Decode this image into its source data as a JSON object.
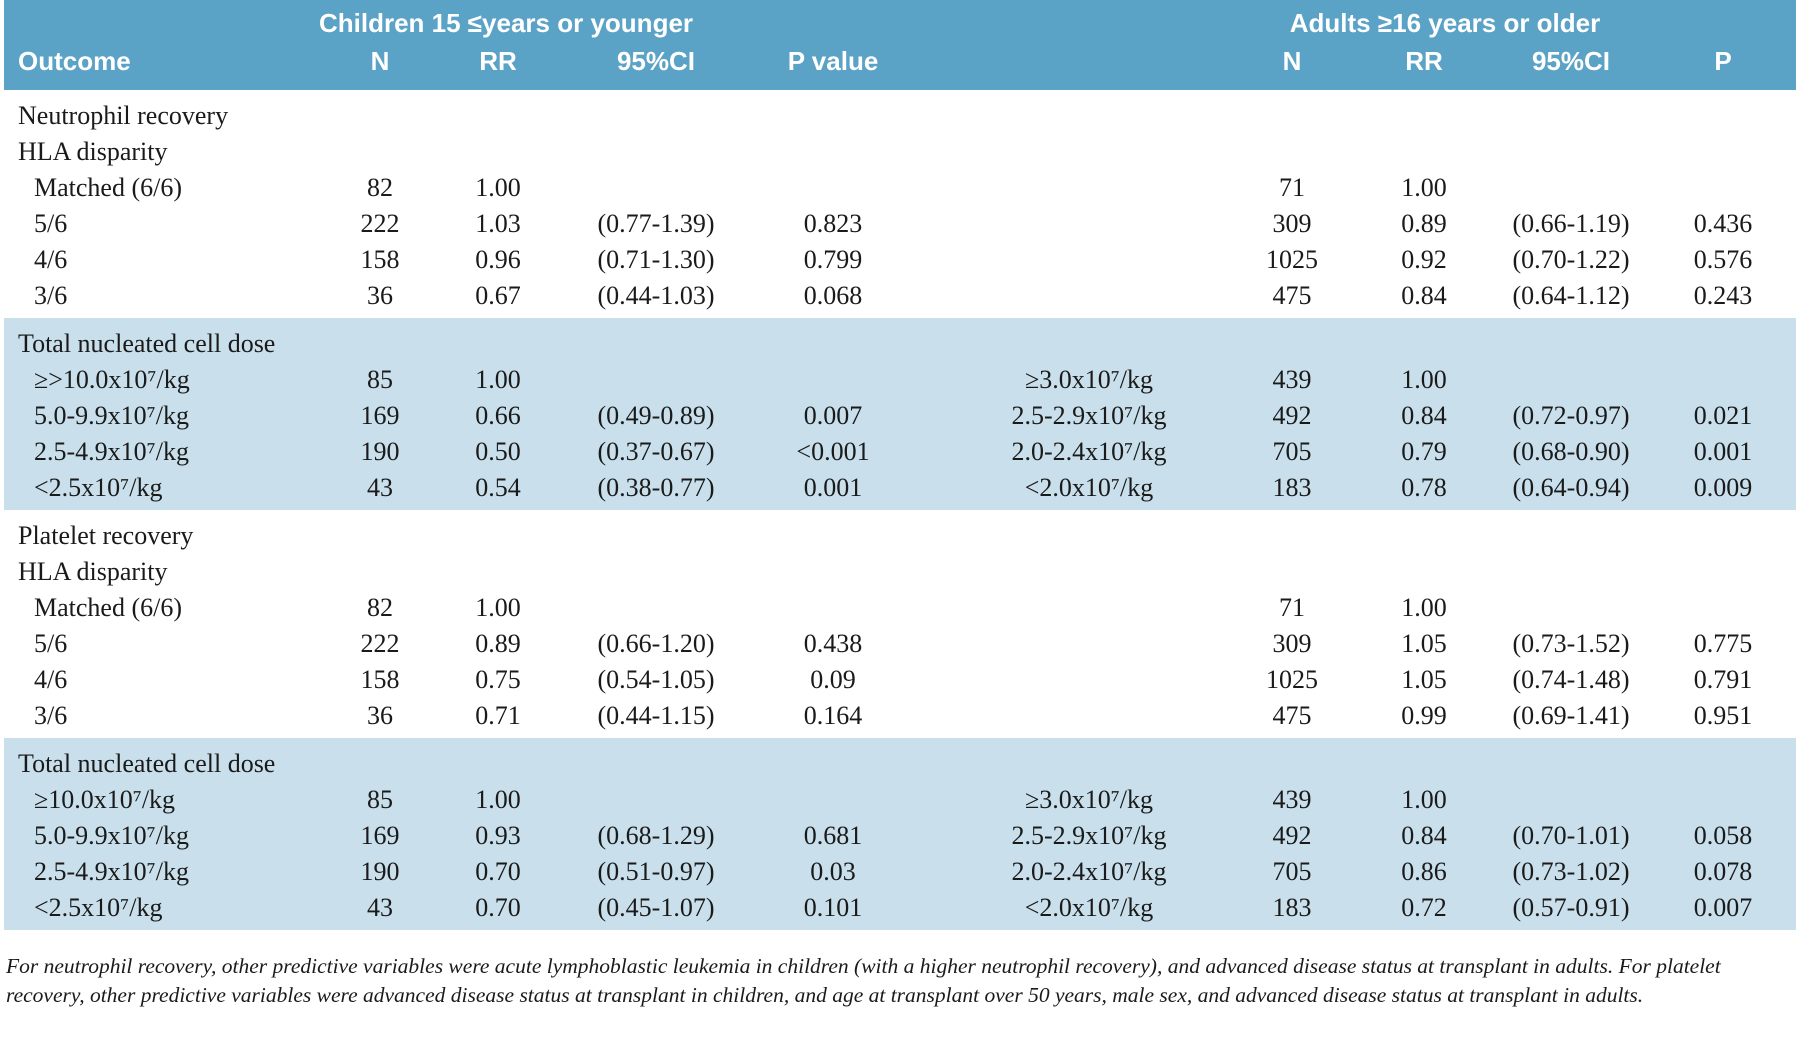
{
  "header": {
    "groups": [
      "Children 15 ≤years or younger",
      "Adults ≥16 years or older"
    ],
    "columns": [
      "Outcome",
      "N",
      "RR",
      "95%CI",
      "P value",
      null,
      "N",
      "RR",
      "95%CI",
      "P"
    ]
  },
  "sections": [
    {
      "rows": [
        [
          "Neutrophil recovery",
          null,
          null,
          null,
          null,
          null,
          null,
          null,
          null,
          null
        ],
        [
          "HLA disparity",
          null,
          null,
          null,
          null,
          null,
          null,
          null,
          null,
          null
        ],
        [
          "Matched (6/6)",
          "82",
          "1.00",
          null,
          null,
          null,
          "71",
          "1.00",
          null,
          null
        ],
        [
          "5/6",
          "222",
          "1.03",
          "(0.77-1.39)",
          "0.823",
          null,
          "309",
          "0.89",
          "(0.66-1.19)",
          "0.436"
        ],
        [
          "4/6",
          "158",
          "0.96",
          "(0.71-1.30)",
          "0.799",
          null,
          "1025",
          "0.92",
          "(0.70-1.22)",
          "0.576"
        ],
        [
          "3/6",
          "36",
          "0.67",
          "(0.44-1.03)",
          "0.068",
          null,
          "475",
          "0.84",
          "(0.64-1.12)",
          "0.243"
        ]
      ]
    },
    {
      "rows": [
        [
          "Total nucleated cell dose",
          null,
          null,
          null,
          null,
          null,
          null,
          null,
          null,
          null
        ],
        [
          "≥>10.0x10⁷/kg",
          "85",
          "1.00",
          null,
          null,
          "≥3.0x10⁷/kg",
          "439",
          "1.00",
          null,
          null
        ],
        [
          "5.0-9.9x10⁷/kg",
          "169",
          "0.66",
          "(0.49-0.89)",
          "0.007",
          "2.5-2.9x10⁷/kg",
          "492",
          "0.84",
          "(0.72-0.97)",
          "0.021"
        ],
        [
          "2.5-4.9x10⁷/kg",
          "190",
          "0.50",
          "(0.37-0.67)",
          "<0.001",
          "2.0-2.4x10⁷/kg",
          "705",
          "0.79",
          "(0.68-0.90)",
          "0.001"
        ],
        [
          "<2.5x10⁷/kg",
          "43",
          "0.54",
          "(0.38-0.77)",
          "0.001",
          "<2.0x10⁷/kg",
          "183",
          "0.78",
          "(0.64-0.94)",
          "0.009"
        ]
      ]
    },
    {
      "rows": [
        [
          "Platelet recovery",
          null,
          null,
          null,
          null,
          null,
          null,
          null,
          null,
          null
        ],
        [
          "HLA disparity",
          null,
          null,
          null,
          null,
          null,
          null,
          null,
          null,
          null
        ],
        [
          "Matched (6/6)",
          "82",
          "1.00",
          null,
          null,
          null,
          "71",
          "1.00",
          null,
          null
        ],
        [
          "5/6",
          "222",
          "0.89",
          "(0.66-1.20)",
          "0.438",
          null,
          "309",
          "1.05",
          "(0.73-1.52)",
          "0.775"
        ],
        [
          "4/6",
          "158",
          "0.75",
          "(0.54-1.05)",
          "0.09",
          null,
          "1025",
          "1.05",
          "(0.74-1.48)",
          "0.791"
        ],
        [
          "3/6",
          "36",
          "0.71",
          "(0.44-1.15)",
          "0.164",
          null,
          "475",
          "0.99",
          "(0.69-1.41)",
          "0.951"
        ]
      ]
    },
    {
      "rows": [
        [
          "Total nucleated cell dose",
          null,
          null,
          null,
          null,
          null,
          null,
          null,
          null,
          null
        ],
        [
          "≥10.0x10⁷/kg",
          "85",
          "1.00",
          null,
          null,
          "≥3.0x10⁷/kg",
          "439",
          "1.00",
          null,
          null
        ],
        [
          "5.0-9.9x10⁷/kg",
          "169",
          "0.93",
          "(0.68-1.29)",
          "0.681",
          "2.5-2.9x10⁷/kg",
          "492",
          "0.84",
          "(0.70-1.01)",
          "0.058"
        ],
        [
          "2.5-4.9x10⁷/kg",
          "190",
          "0.70",
          "(0.51-0.97)",
          "0.03",
          "2.0-2.4x10⁷/kg",
          "705",
          "0.86",
          "(0.73-1.02)",
          "0.078"
        ],
        [
          "<2.5x10⁷/kg",
          "43",
          "0.70",
          "(0.45-1.07)",
          "0.101",
          "<2.0x10⁷/kg",
          "183",
          "0.72",
          "(0.57-0.91)",
          "0.007"
        ]
      ]
    }
  ],
  "footnote": "For neutrophil recovery, other predictive variables were acute lymphoblastic leukemia in children (with a higher neutrophil recovery), and advanced disease status at transplant in adults. For platelet recovery, other predictive variables were advanced disease status at transplant in children, and age at transplant over 50 years, male sex, and advanced disease status at transplant in adults."
}
